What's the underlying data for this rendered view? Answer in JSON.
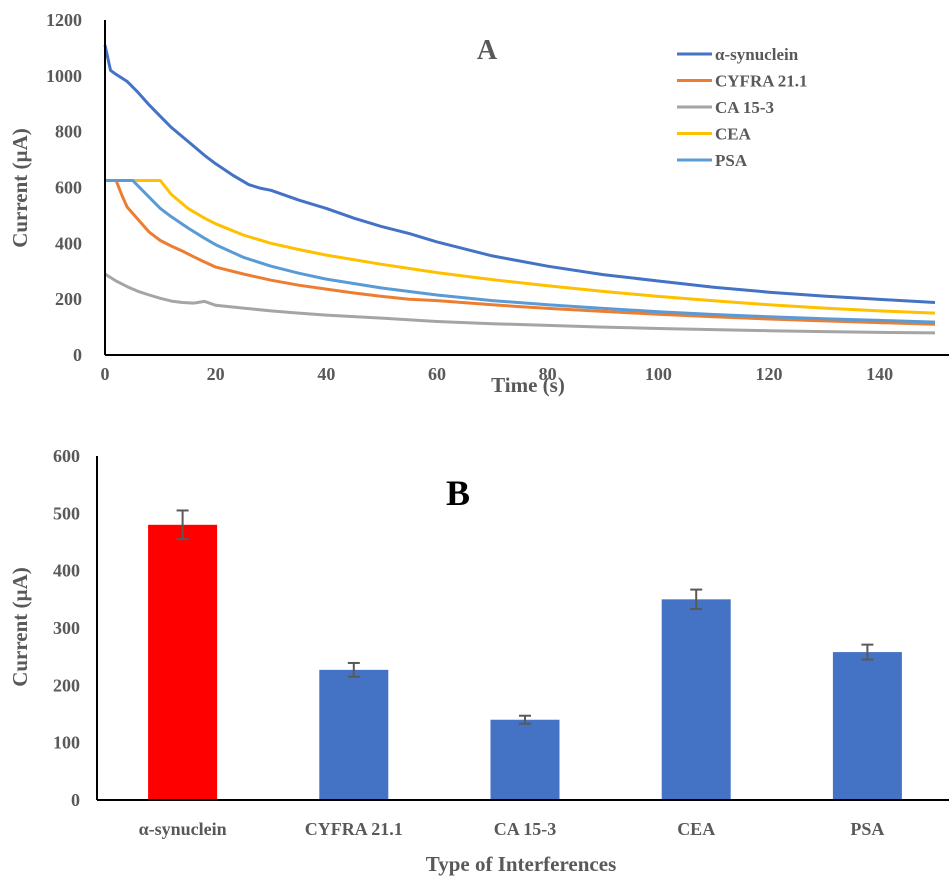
{
  "chart_data": [
    {
      "type": "line",
      "panel_label": "A",
      "xlabel": "Time (s)",
      "ylabel": "Current (µA)",
      "xlim": [
        0,
        150
      ],
      "ylim": [
        0,
        1200
      ],
      "xticks": [
        "0",
        "20",
        "40",
        "60",
        "80",
        "100",
        "120",
        "140"
      ],
      "yticks": [
        "0",
        "200",
        "400",
        "600",
        "800",
        "1000",
        "1200"
      ],
      "grid": false,
      "legend": "top-right",
      "series": [
        {
          "name": "α-synuclein",
          "color": "#4472C4",
          "x": [
            0,
            1,
            2,
            4,
            6,
            8,
            10,
            12,
            15,
            18,
            20,
            23,
            26,
            28,
            30,
            35,
            40,
            45,
            50,
            55,
            60,
            70,
            80,
            90,
            100,
            110,
            120,
            130,
            140,
            150
          ],
          "y": [
            1110,
            1020,
            1005,
            980,
            940,
            895,
            855,
            815,
            765,
            715,
            685,
            645,
            610,
            598,
            590,
            555,
            525,
            490,
            460,
            435,
            405,
            355,
            318,
            288,
            265,
            243,
            225,
            211,
            199,
            188
          ]
        },
        {
          "name": "CYFRA 21.1",
          "color": "#ED7D31",
          "x": [
            0,
            2,
            3,
            4,
            6,
            8,
            10,
            12,
            14,
            16,
            18,
            20,
            25,
            30,
            35,
            40,
            45,
            50,
            55,
            60,
            70,
            80,
            90,
            100,
            110,
            120,
            130,
            140,
            150
          ],
          "y": [
            625,
            625,
            575,
            530,
            485,
            440,
            410,
            390,
            372,
            352,
            333,
            315,
            290,
            268,
            250,
            236,
            222,
            210,
            200,
            195,
            180,
            167,
            156,
            146,
            137,
            129,
            122,
            116,
            110
          ]
        },
        {
          "name": "CA 15-3",
          "color": "#A5A5A5",
          "x": [
            0,
            2,
            4,
            6,
            8,
            10,
            12,
            14,
            16,
            18,
            20,
            25,
            30,
            35,
            40,
            50,
            60,
            70,
            80,
            90,
            100,
            110,
            120,
            130,
            140,
            150
          ],
          "y": [
            290,
            265,
            245,
            228,
            215,
            203,
            193,
            188,
            186,
            192,
            178,
            168,
            158,
            150,
            143,
            132,
            120,
            112,
            106,
            100,
            95,
            91,
            87,
            84,
            81,
            79
          ]
        },
        {
          "name": "CEA",
          "color": "#FFC000",
          "x": [
            0,
            10,
            12,
            15,
            18,
            20,
            25,
            30,
            35,
            40,
            50,
            60,
            70,
            80,
            90,
            100,
            110,
            120,
            130,
            140,
            150
          ],
          "y": [
            625,
            625,
            575,
            525,
            490,
            470,
            430,
            400,
            378,
            358,
            325,
            295,
            270,
            248,
            228,
            210,
            194,
            180,
            168,
            158,
            150
          ]
        },
        {
          "name": "PSA",
          "color": "#5B9BD5",
          "x": [
            0,
            5,
            6,
            8,
            10,
            12,
            15,
            18,
            20,
            25,
            30,
            35,
            40,
            50,
            60,
            70,
            80,
            90,
            100,
            110,
            120,
            130,
            140,
            150
          ],
          "y": [
            625,
            625,
            605,
            565,
            525,
            495,
            455,
            418,
            395,
            350,
            318,
            293,
            272,
            240,
            215,
            195,
            180,
            167,
            155,
            145,
            137,
            130,
            124,
            118
          ]
        }
      ]
    },
    {
      "type": "bar",
      "panel_label": "B",
      "xlabel": "Type of Interferences",
      "ylabel": "Current (µA)",
      "ylim": [
        0,
        600
      ],
      "yticks": [
        "0",
        "100",
        "200",
        "300",
        "400",
        "500",
        "600"
      ],
      "grid": false,
      "categories": [
        "α-synuclein",
        "CYFRA 21.1",
        "CA 15-3",
        "CEA",
        "PSA"
      ],
      "values": [
        480,
        227,
        140,
        350,
        258
      ],
      "errors": [
        25,
        12,
        7,
        17,
        13
      ],
      "colors": [
        "#FF0000",
        "#4472C4",
        "#4472C4",
        "#4472C4",
        "#4472C4"
      ],
      "error_color": "#595959"
    }
  ]
}
